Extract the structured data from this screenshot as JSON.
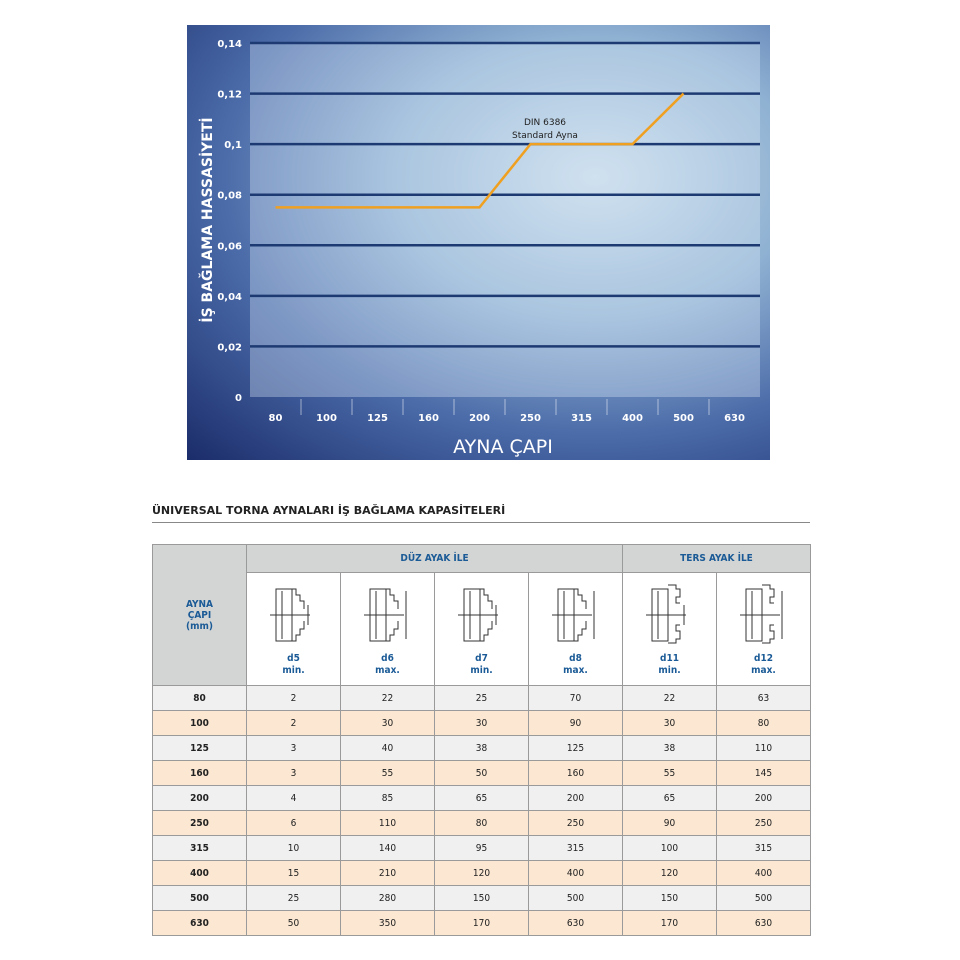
{
  "chart_data": {
    "type": "line",
    "xlabel": "AYNA ÇAPI",
    "ylabel": "İŞ BAĞLAMA HASSASİYETİ",
    "categories": [
      "80",
      "100",
      "125",
      "160",
      "200",
      "250",
      "315",
      "400",
      "500",
      "630"
    ],
    "yticks": [
      "0",
      "0,02",
      "0,04",
      "0,06",
      "0,08",
      "0,1",
      "0,12",
      "0,14"
    ],
    "ylim": [
      0,
      0.14
    ],
    "grid": true,
    "series": [
      {
        "name": "DIN 6386 Standard Ayna",
        "points": [
          [
            "80",
            0.075
          ],
          [
            "200",
            0.075
          ],
          [
            "250",
            0.1
          ],
          [
            "400",
            0.1
          ],
          [
            "500",
            0.12
          ]
        ],
        "color": "#f0a020"
      }
    ],
    "annotation": [
      "DIN 6386",
      "Standard Ayna"
    ]
  },
  "table": {
    "title": "ÜNIVERSAL TORNA AYNALARI İŞ BAĞLAMA KAPASİTELERİ",
    "row_header": [
      "AYNA",
      "ÇAPI",
      "(mm)"
    ],
    "group1": "DÜZ AYAK İLE",
    "group2": "TERS AYAK İLE",
    "columns": [
      [
        "d5",
        "min."
      ],
      [
        "d6",
        "max."
      ],
      [
        "d7",
        "min."
      ],
      [
        "d8",
        "max."
      ],
      [
        "d11",
        "min."
      ],
      [
        "d12",
        "max."
      ]
    ],
    "rows": [
      [
        "80",
        "2",
        "22",
        "25",
        "70",
        "22",
        "63"
      ],
      [
        "100",
        "2",
        "30",
        "30",
        "90",
        "30",
        "80"
      ],
      [
        "125",
        "3",
        "40",
        "38",
        "125",
        "38",
        "110"
      ],
      [
        "160",
        "3",
        "55",
        "50",
        "160",
        "55",
        "145"
      ],
      [
        "200",
        "4",
        "85",
        "65",
        "200",
        "65",
        "200"
      ],
      [
        "250",
        "6",
        "110",
        "80",
        "250",
        "90",
        "250"
      ],
      [
        "315",
        "10",
        "140",
        "95",
        "315",
        "100",
        "315"
      ],
      [
        "400",
        "15",
        "210",
        "120",
        "400",
        "120",
        "400"
      ],
      [
        "500",
        "25",
        "280",
        "150",
        "500",
        "150",
        "500"
      ],
      [
        "630",
        "50",
        "350",
        "170",
        "630",
        "170",
        "630"
      ]
    ]
  }
}
